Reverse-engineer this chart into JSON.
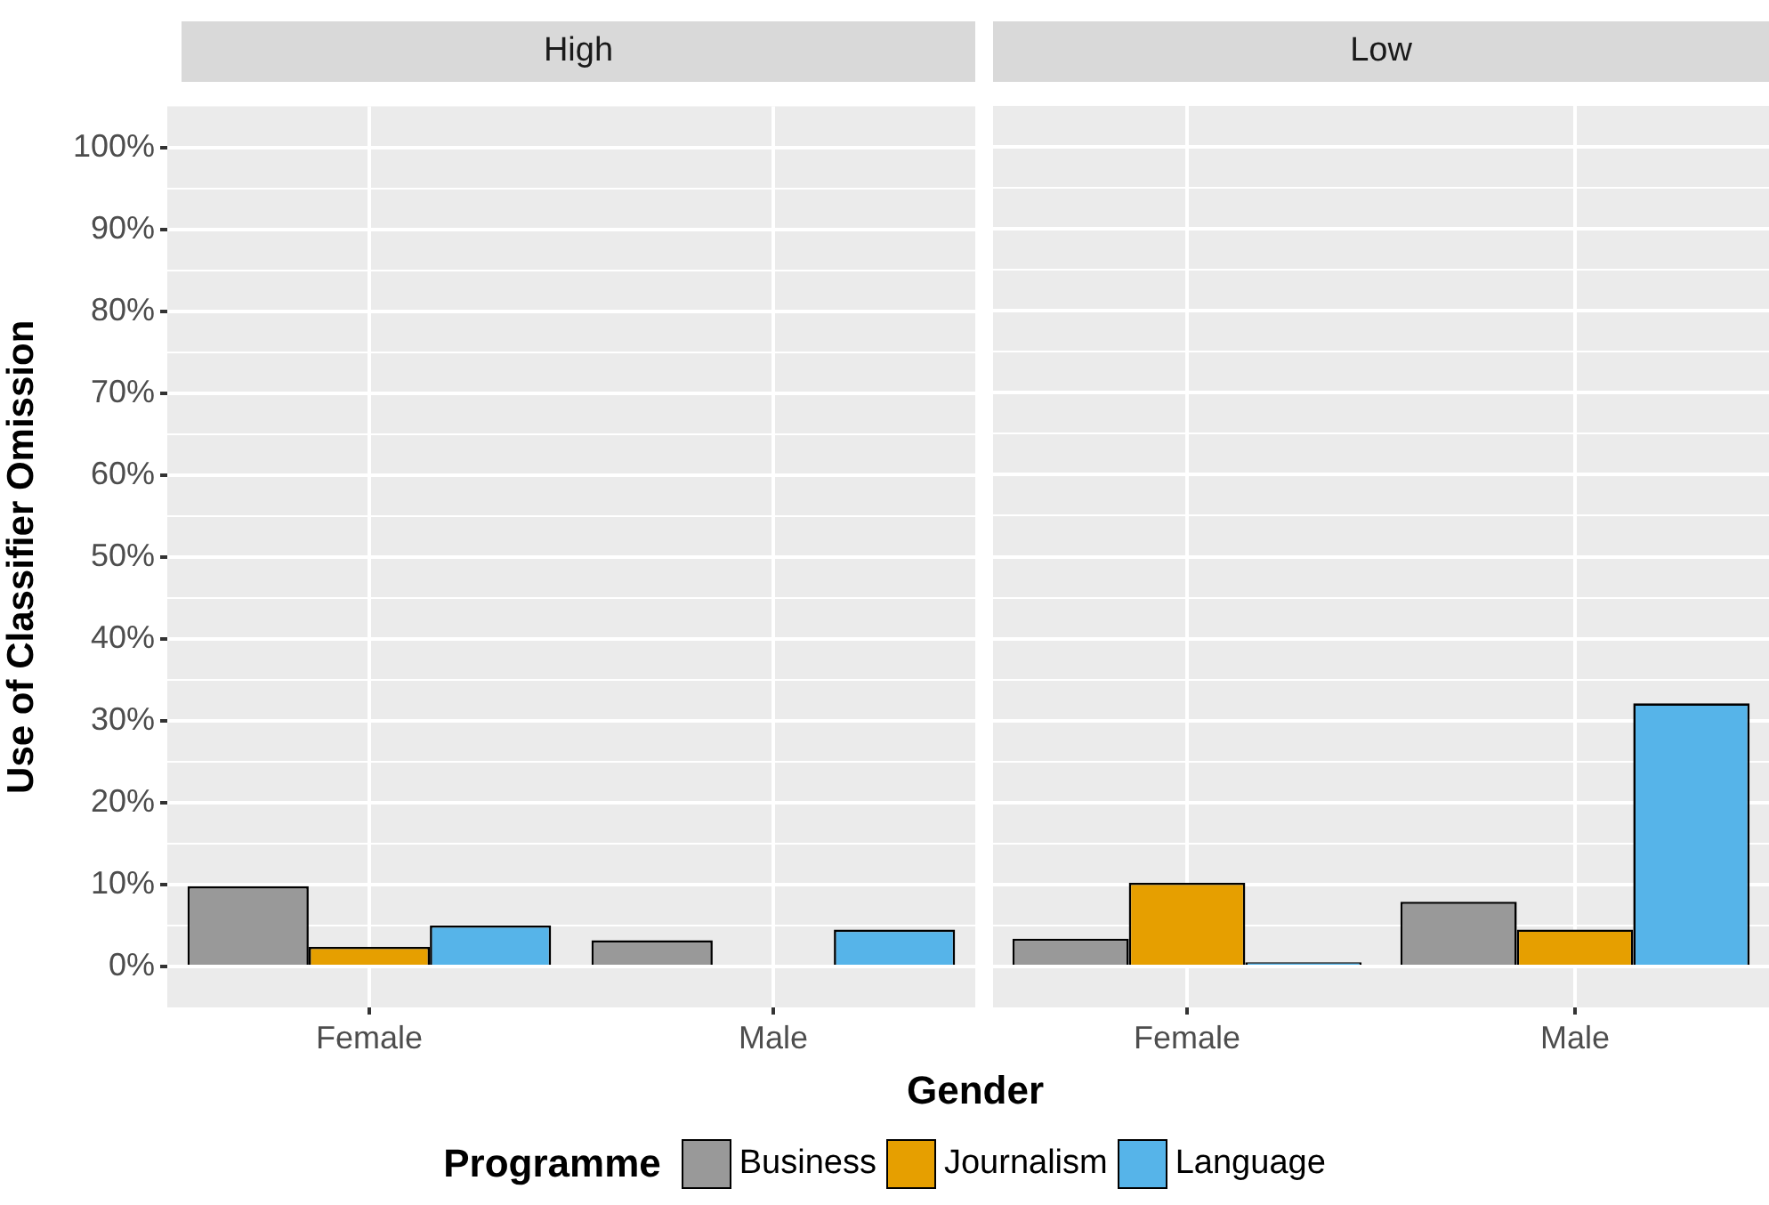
{
  "chart_data": [
    {
      "type": "bar",
      "title": "High",
      "ylabel": "Use of Classifier Omission",
      "xlabel": "Gender",
      "legend_title": "Programme",
      "legend": "bottom",
      "grid": true,
      "categories": [
        "Female",
        "Male"
      ],
      "ylim": [
        -5,
        105
      ],
      "yticks": [
        {
          "value": 0,
          "label": "0%"
        },
        {
          "value": 5,
          "label": null
        },
        {
          "value": 10,
          "label": "10%"
        },
        {
          "value": 15,
          "label": null
        },
        {
          "value": 20,
          "label": "20%"
        },
        {
          "value": 25,
          "label": null
        },
        {
          "value": 30,
          "label": "30%"
        },
        {
          "value": 35,
          "label": null
        },
        {
          "value": 40,
          "label": "40%"
        },
        {
          "value": 45,
          "label": null
        },
        {
          "value": 50,
          "label": "50%"
        },
        {
          "value": 55,
          "label": null
        },
        {
          "value": 60,
          "label": "60%"
        },
        {
          "value": 65,
          "label": null
        },
        {
          "value": 70,
          "label": "70%"
        },
        {
          "value": 75,
          "label": null
        },
        {
          "value": 80,
          "label": "80%"
        },
        {
          "value": 85,
          "label": null
        },
        {
          "value": 90,
          "label": "90%"
        },
        {
          "value": 95,
          "label": null
        },
        {
          "value": 100,
          "label": "100%"
        }
      ],
      "series": [
        {
          "name": "Business",
          "color": "#999999",
          "values": [
            9.8,
            3.2
          ]
        },
        {
          "name": "Journalism",
          "color": "#e69f00",
          "values": [
            2.4,
            0
          ]
        },
        {
          "name": "Language",
          "color": "#56b4e9",
          "values": [
            5.0,
            4.5
          ]
        }
      ]
    },
    {
      "type": "bar",
      "title": "Low",
      "tick_labels": "x",
      "grid": true,
      "categories": [
        "Female",
        "Male"
      ],
      "ylim": [
        -5,
        105
      ],
      "yticks": [
        0,
        {
          "value": 5,
          "label": null
        },
        10,
        {
          "value": 15,
          "label": null
        },
        20,
        {
          "value": 25,
          "label": null
        },
        30,
        {
          "value": 35,
          "label": null
        },
        40,
        {
          "value": 45,
          "label": null
        },
        50,
        {
          "value": 55,
          "label": null
        },
        60,
        {
          "value": 65,
          "label": null
        },
        70,
        {
          "value": 75,
          "label": null
        },
        80,
        {
          "value": 85,
          "label": null
        },
        90,
        {
          "value": 95,
          "label": null
        },
        100
      ],
      "series": [
        {
          "color": "#999999",
          "values": [
            3.4,
            7.9
          ]
        },
        {
          "color": "#e69f00",
          "values": [
            10.2,
            4.5
          ]
        },
        {
          "color": "#56b4e9",
          "values": [
            0.5,
            32.1
          ]
        }
      ]
    }
  ]
}
